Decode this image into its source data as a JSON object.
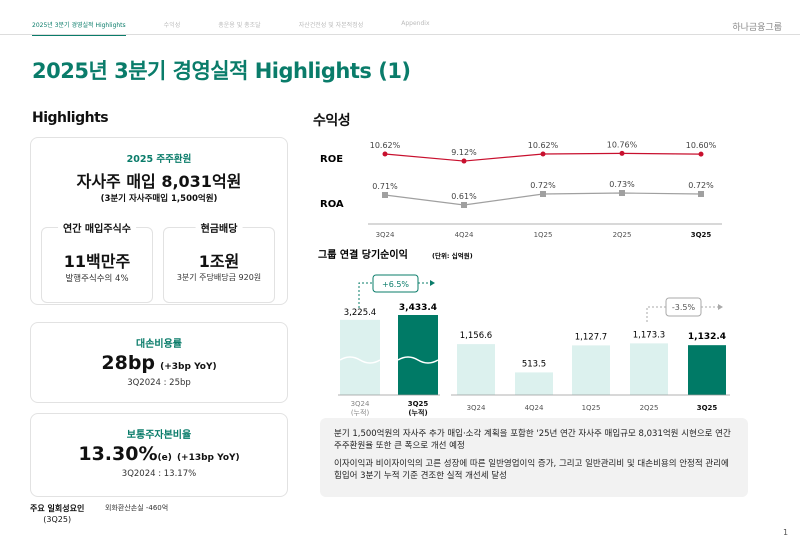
{
  "nav": {
    "tabs": [
      "2025년 3분기 경영실적 Highlights",
      "수익성",
      "총운용 및 총조달",
      "자산건전성 및 자본적정성",
      "Appendix"
    ],
    "brand": "하나금융그룹"
  },
  "title": "2025년 3분기 경영실적 Highlights (1)",
  "highlights": {
    "heading": "Highlights",
    "shareholder": {
      "label": "2025 주주환원",
      "main": "자사주 매입 8,031억원",
      "sub": "(3분기 자사주매입 1,500억원)",
      "left": {
        "label": "연간 매입주식수",
        "value": "11백만주",
        "sub": "발행주식수의 4%"
      },
      "right": {
        "label": "현금배당",
        "value": "1조원",
        "sub": "3분기 주당배당금 920원"
      }
    },
    "credit_cost": {
      "label": "대손비용률",
      "value": "28bp",
      "change": "(+3bp YoY)",
      "prev": "3Q2024 : 25bp"
    },
    "cet1": {
      "label": "보통주자본비율",
      "value": "13.30%",
      "suffix": "(e)",
      "change": "(+13bp YoY)",
      "prev": "3Q2024 : 13.17%"
    },
    "footnote": {
      "label": "주요 일회성요인",
      "period": "(3Q25)",
      "value": "외화환산손실 -460억"
    }
  },
  "profitability": {
    "heading": "수익성"
  },
  "chart_data": [
    {
      "type": "line",
      "categories": [
        "3Q24",
        "4Q24",
        "1Q25",
        "2Q25",
        "3Q25"
      ],
      "series": [
        {
          "name": "ROE",
          "values": [
            10.62,
            9.12,
            10.62,
            10.76,
            10.6
          ],
          "labels": [
            "10.62%",
            "9.12%",
            "10.62%",
            "10.76%",
            "10.60%"
          ],
          "color": "#c8102e"
        },
        {
          "name": "ROA",
          "values": [
            0.71,
            0.61,
            0.72,
            0.73,
            0.72
          ],
          "labels": [
            "0.71%",
            "0.61%",
            "0.72%",
            "0.73%",
            "0.72%"
          ],
          "color": "#a0a0a0"
        }
      ]
    },
    {
      "type": "bar",
      "title": "그룹 연결 당기순이익",
      "unit": "(단위: 십억원)",
      "cumulative": {
        "categories": [
          "3Q24\n(누적)",
          "3Q25\n(누적)"
        ],
        "cat_lines": [
          [
            "3Q24",
            "(누적)"
          ],
          [
            "3Q25",
            "(누적)"
          ]
        ],
        "values": [
          3225.4,
          3433.4
        ],
        "labels": [
          "3,225.4",
          "3,433.4"
        ],
        "change": "+6.5%"
      },
      "quarterly": {
        "categories": [
          "3Q24",
          "4Q24",
          "1Q25",
          "2Q25",
          "3Q25"
        ],
        "values": [
          1156.6,
          513.5,
          1127.7,
          1173.3,
          1132.4
        ],
        "labels": [
          "1,156.6",
          "513.5",
          "1,127.7",
          "1,173.3",
          "1,132.4"
        ],
        "change": "-3.5%"
      },
      "colors": {
        "highlight": "#007a66",
        "base": "#dcf1ee"
      }
    }
  ],
  "notes": [
    "분기 1,500억원의 자사주 추가 매입·소각 계획을 포함한 '25년 연간 자사주 매입규모 8,031억원 시현으로 연간 주주환원율 또한 큰 폭으로 개선 예정",
    "이자이익과 비이자이익의 고른 성장에 따른 일반영업이익 증가, 그리고 일반관리비 및 대손비용의 안정적 관리에 힘입어 3분기 누적 기준 견조한 실적 개선세 달성"
  ],
  "page_number": "1"
}
